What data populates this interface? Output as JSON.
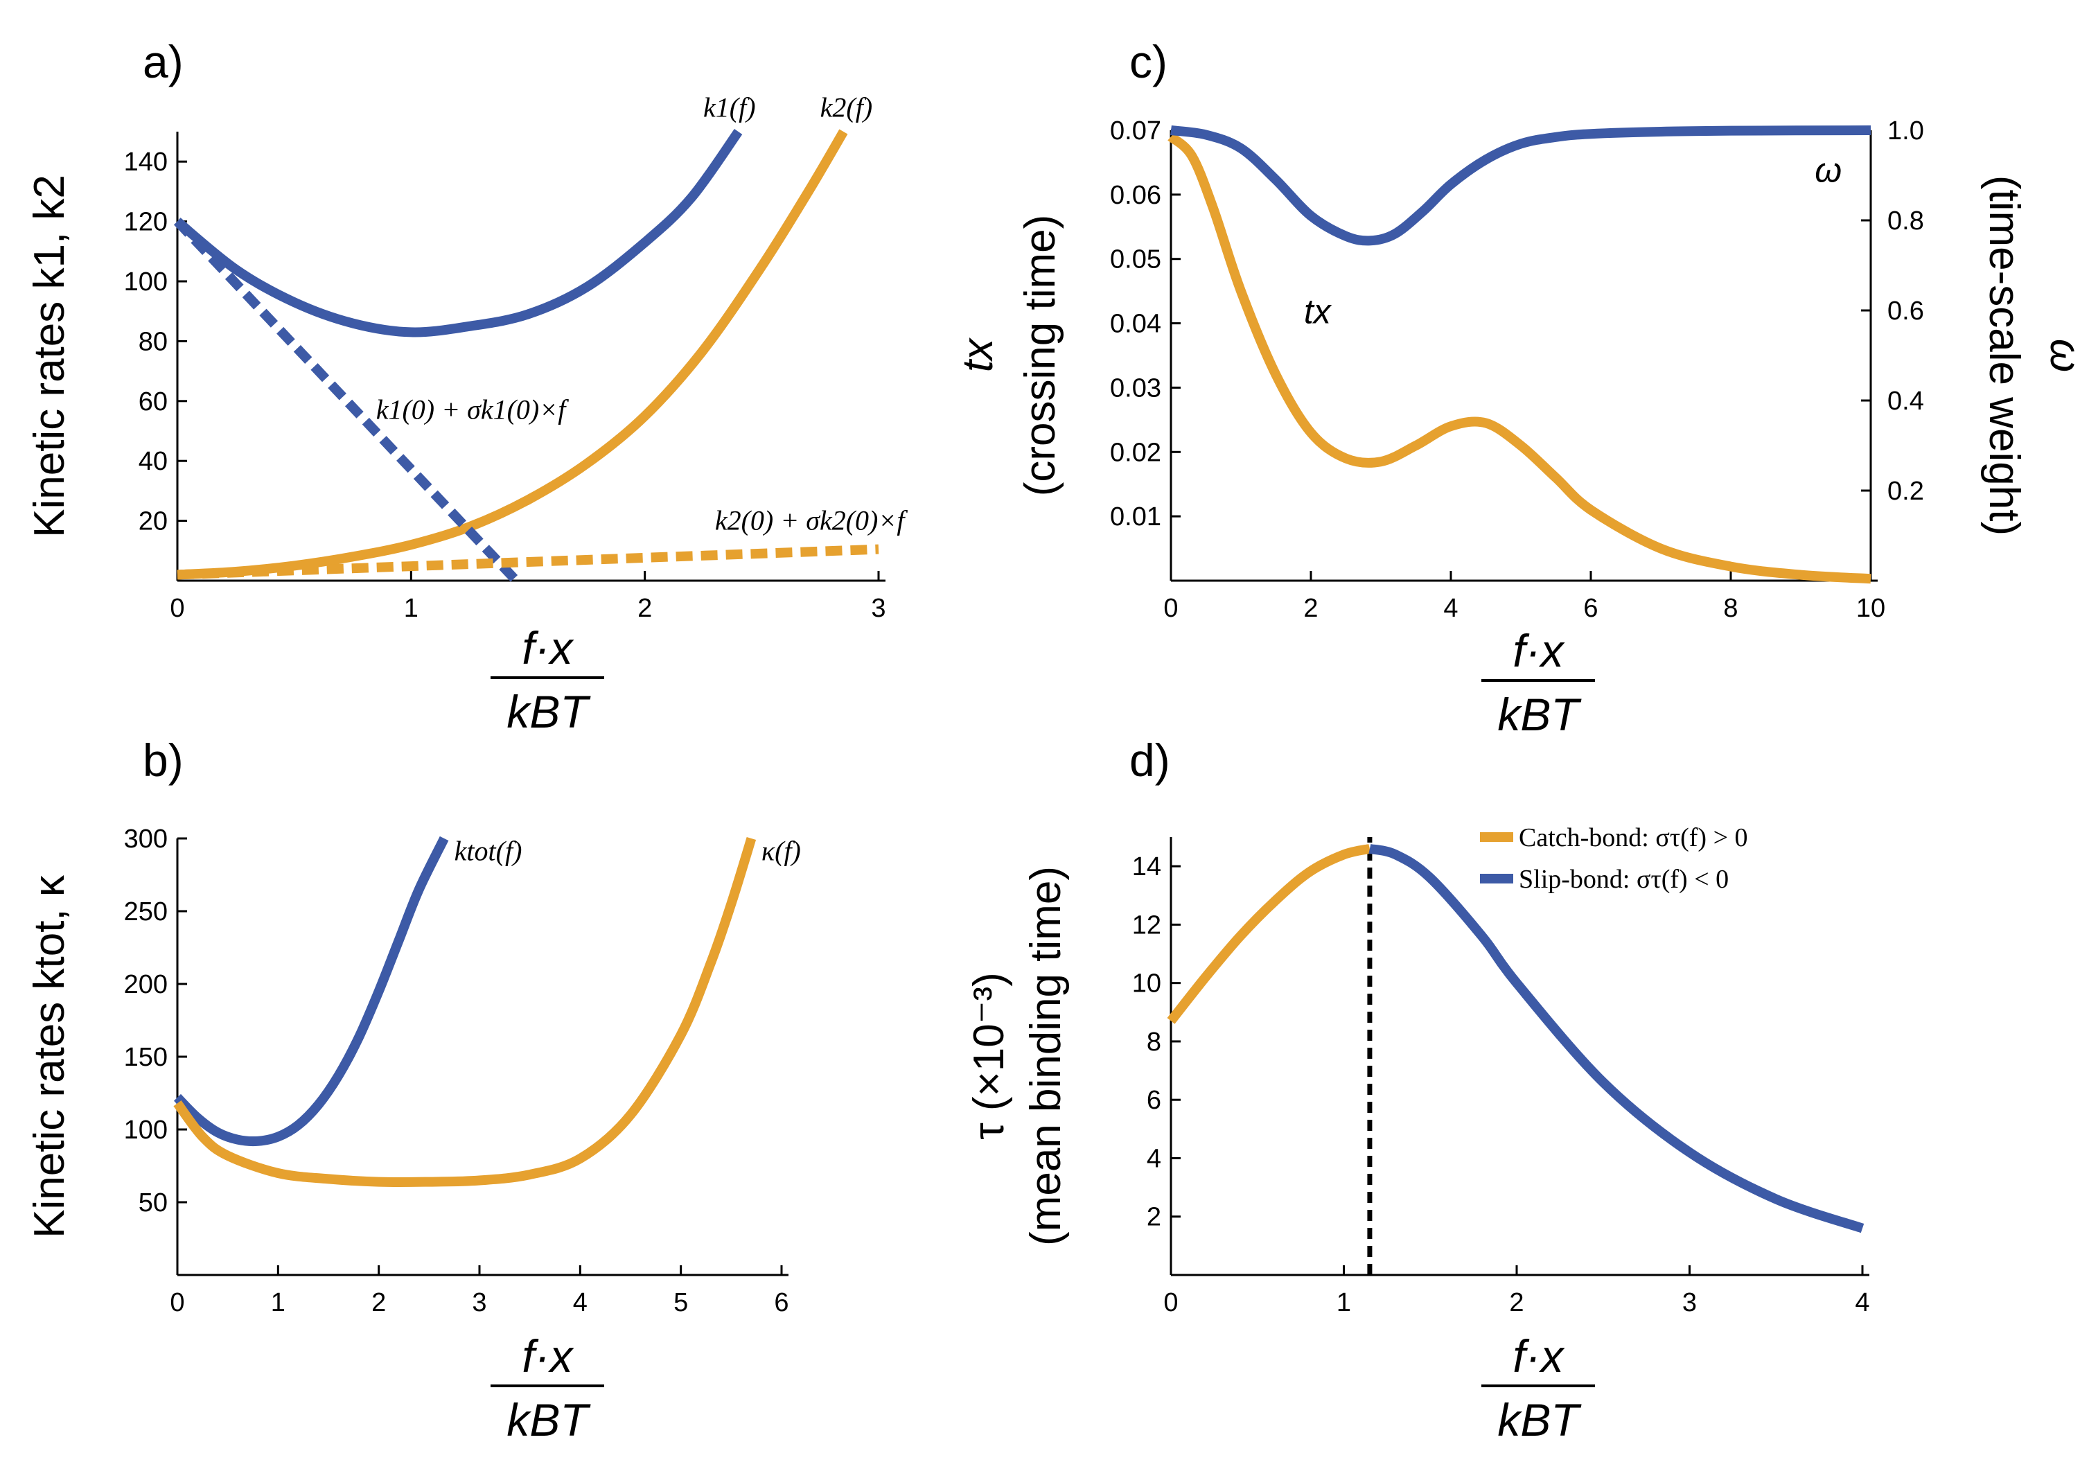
{
  "colors": {
    "blue": "#3d5aa6",
    "orange": "#e6a12f",
    "black": "#000000"
  },
  "x_axis_label": {
    "numerator": "f·x",
    "denominator": "kBT"
  },
  "chart_data": [
    {
      "panel": "a)",
      "type": "line",
      "ylabel": "Kinetic rates k1, k2",
      "xlim": [
        0,
        3
      ],
      "ylim": [
        0,
        150
      ],
      "xticks": [
        0,
        1,
        2,
        3
      ],
      "yticks": [
        20,
        40,
        60,
        80,
        100,
        120,
        140
      ],
      "series": [
        {
          "name": "k1(f)",
          "color": "blue",
          "style": "solid",
          "x": [
            0,
            0.25,
            0.5,
            0.75,
            1.0,
            1.25,
            1.5,
            1.75,
            2.0,
            2.2,
            2.4
          ],
          "y": [
            120,
            104,
            93,
            86,
            83,
            85,
            89,
            98,
            113,
            128,
            150
          ]
        },
        {
          "name": "k2(f)",
          "color": "orange",
          "style": "solid",
          "x": [
            0,
            0.25,
            0.5,
            0.75,
            1.0,
            1.25,
            1.5,
            1.75,
            2.0,
            2.25,
            2.5,
            2.7,
            2.85
          ],
          "y": [
            2,
            3,
            5,
            8,
            12,
            18,
            27,
            39,
            55,
            77,
            105,
            130,
            150
          ]
        },
        {
          "name": "k1(0)+σk1(0)×f",
          "color": "blue",
          "style": "dashed",
          "x": [
            0,
            1.45
          ],
          "y": [
            120,
            0
          ]
        },
        {
          "name": "k2(0)+σk2(0)×f",
          "color": "orange",
          "style": "dashed",
          "x": [
            0,
            3.0
          ],
          "y": [
            2,
            10.5
          ]
        }
      ],
      "annotations": [
        {
          "text": "k1(f)",
          "x": 2.25,
          "y": 155
        },
        {
          "text": "k2(f)",
          "x": 2.75,
          "y": 155
        },
        {
          "text": "k1(0) + σk1(0)×f",
          "x": 0.85,
          "y": 54
        },
        {
          "text": "k2(0) + σk2(0)×f",
          "x": 2.3,
          "y": 17
        }
      ]
    },
    {
      "panel": "b)",
      "type": "line",
      "ylabel": "Kinetic rates ktot, κ",
      "xlim": [
        0,
        6
      ],
      "ylim": [
        0,
        300
      ],
      "xticks": [
        0,
        1,
        2,
        3,
        4,
        5,
        6
      ],
      "yticks": [
        50,
        100,
        150,
        200,
        250,
        300
      ],
      "series": [
        {
          "name": "ktot(f)",
          "color": "blue",
          "style": "solid",
          "x": [
            0,
            0.2,
            0.4,
            0.6,
            0.8,
            1.0,
            1.2,
            1.4,
            1.6,
            1.8,
            2.0,
            2.2,
            2.4,
            2.65
          ],
          "y": [
            122,
            108,
            98,
            93,
            92,
            95,
            103,
            117,
            137,
            163,
            195,
            230,
            265,
            300
          ]
        },
        {
          "name": "κ(f)",
          "color": "orange",
          "style": "solid",
          "x": [
            0,
            0.25,
            0.5,
            1.0,
            1.5,
            2.0,
            2.5,
            3.0,
            3.5,
            4.0,
            4.5,
            5.0,
            5.3,
            5.5,
            5.7
          ],
          "y": [
            118,
            95,
            82,
            70,
            66,
            64,
            64,
            65,
            69,
            80,
            110,
            165,
            215,
            255,
            300
          ]
        }
      ],
      "annotations": [
        {
          "text": "ktot(f)",
          "x": 2.75,
          "y": 285
        },
        {
          "text": "κ(f)",
          "x": 5.8,
          "y": 285
        }
      ]
    },
    {
      "panel": "c)",
      "type": "line",
      "ylabel": "tx",
      "ylabel_sub": "(crossing time)",
      "y2label": "ω",
      "y2label_sub": "(time-scale weight)",
      "xlim": [
        0,
        10
      ],
      "ylim": [
        0,
        0.07
      ],
      "y2lim": [
        0,
        1.0
      ],
      "xticks": [
        0,
        2,
        4,
        6,
        8,
        10
      ],
      "yticks": [
        "0.01",
        "0.02",
        "0.03",
        "0.04",
        "0.05",
        "0.06",
        "0.07"
      ],
      "y2ticks": [
        "0.2",
        "0.4",
        "0.6",
        "0.8",
        "1.0"
      ],
      "series": [
        {
          "name": "tx",
          "axis": "left",
          "color": "orange",
          "style": "solid",
          "x": [
            0,
            0.3,
            0.6,
            1.0,
            1.5,
            2.0,
            2.5,
            3.0,
            3.5,
            4.0,
            4.5,
            5.0,
            5.5,
            6.0,
            7.0,
            8.0,
            9.0,
            10.0
          ],
          "y": [
            0.069,
            0.066,
            0.058,
            0.045,
            0.032,
            0.023,
            0.019,
            0.0185,
            0.021,
            0.024,
            0.0245,
            0.021,
            0.016,
            0.011,
            0.005,
            0.0022,
            0.0009,
            0.0003
          ]
        },
        {
          "name": "ω",
          "axis": "right",
          "color": "blue",
          "style": "solid",
          "x": [
            0,
            0.5,
            1.0,
            1.5,
            2.0,
            2.5,
            2.85,
            3.2,
            3.6,
            4.0,
            4.5,
            5.0,
            5.5,
            6.0,
            7.0,
            8.0,
            10.0
          ],
          "y": [
            1.0,
            0.99,
            0.96,
            0.89,
            0.81,
            0.765,
            0.755,
            0.77,
            0.82,
            0.88,
            0.935,
            0.97,
            0.985,
            0.992,
            0.997,
            0.999,
            1.0
          ]
        }
      ],
      "annotations": [
        {
          "text": "tx",
          "x": 1.9,
          "y": 0.04
        },
        {
          "text": "ω",
          "x": 9.2,
          "y": 0.062
        }
      ]
    },
    {
      "panel": "d)",
      "type": "line",
      "ylabel": "τ (×10⁻³)",
      "ylabel_sub": "(mean binding time)",
      "xlim": [
        0,
        4
      ],
      "ylim": [
        0,
        15
      ],
      "xticks": [
        0,
        1,
        2,
        3,
        4
      ],
      "yticks": [
        2,
        4,
        6,
        8,
        10,
        12,
        14
      ],
      "vline": 1.15,
      "series": [
        {
          "name": "Catch-bond: στ(f) > 0",
          "color": "orange",
          "style": "solid",
          "x": [
            0,
            0.2,
            0.4,
            0.6,
            0.8,
            1.0,
            1.15
          ],
          "y": [
            8.7,
            10.2,
            11.6,
            12.8,
            13.8,
            14.4,
            14.6
          ]
        },
        {
          "name": "Slip-bond: στ(f) < 0",
          "color": "blue",
          "style": "solid",
          "x": [
            1.15,
            1.3,
            1.5,
            1.8,
            2.0,
            2.5,
            3.0,
            3.5,
            4.0
          ],
          "y": [
            14.6,
            14.4,
            13.6,
            11.6,
            10.0,
            6.6,
            4.2,
            2.6,
            1.6
          ]
        }
      ],
      "legend": {
        "placement": "top-right"
      }
    }
  ]
}
